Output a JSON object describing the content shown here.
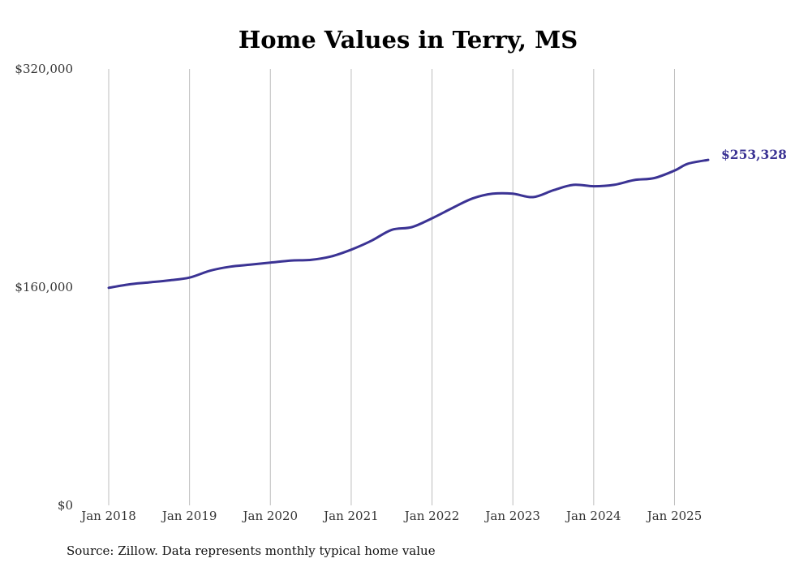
{
  "colors": {
    "series": "#3b3394",
    "grid": "#bdbdbd",
    "text": "#333333"
  },
  "chart_data": {
    "type": "line",
    "title": "Home Values in Terry, MS",
    "xlabel": "",
    "ylabel": "",
    "grid": "vertical",
    "legend": "none",
    "ylim": [
      0,
      320000
    ],
    "xlim": [
      "2018-01",
      "2025-06"
    ],
    "y_ticks": [
      0,
      160000,
      320000
    ],
    "y_tick_labels": [
      "$0",
      "$160,000",
      "$320,000"
    ],
    "x_ticks": [
      "2018-01",
      "2019-01",
      "2020-01",
      "2021-01",
      "2022-01",
      "2023-01",
      "2024-01",
      "2025-01"
    ],
    "x_tick_labels": [
      "Jan 2018",
      "Jan 2019",
      "Jan 2020",
      "Jan 2021",
      "Jan 2022",
      "Jan 2023",
      "Jan 2024",
      "Jan 2025"
    ],
    "end_label": "$253,328",
    "series": [
      {
        "x": [
          "2018-01",
          "2018-04",
          "2018-07",
          "2018-10",
          "2019-01",
          "2019-04",
          "2019-07",
          "2019-10",
          "2020-01",
          "2020-04",
          "2020-07",
          "2020-10",
          "2021-01",
          "2021-04",
          "2021-07",
          "2021-10",
          "2022-01",
          "2022-04",
          "2022-07",
          "2022-10",
          "2023-01",
          "2023-04",
          "2023-07",
          "2023-10",
          "2024-01",
          "2024-04",
          "2024-07",
          "2024-10",
          "2025-01",
          "2025-03",
          "2025-06"
        ],
        "values": [
          159500,
          162000,
          163500,
          165000,
          167000,
          172000,
          175000,
          176500,
          178000,
          179500,
          180000,
          182500,
          187500,
          194000,
          202000,
          204000,
          210500,
          218000,
          225000,
          228500,
          228500,
          226000,
          231000,
          235000,
          234000,
          235000,
          238500,
          240000,
          245500,
          250500,
          253328
        ]
      }
    ]
  },
  "source_note": "Source: Zillow. Data represents monthly typical home value"
}
